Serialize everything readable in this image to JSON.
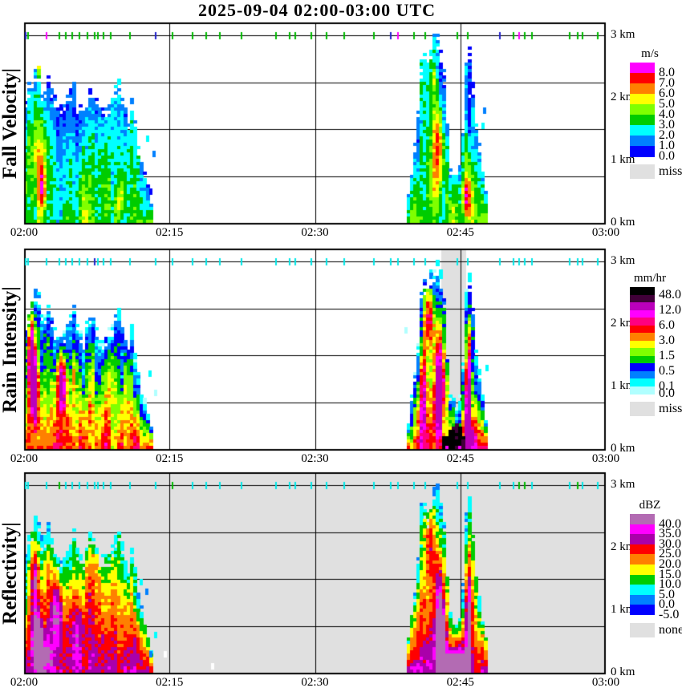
{
  "chart_data": {
    "type": "heatmap",
    "title": "2025-09-04  02:00-03:00 UTC",
    "x_tick_labels": [
      "02:00",
      "02:15",
      "02:30",
      "02:45",
      "03:00"
    ],
    "y_axis_labels": [
      "3 km",
      "2 km",
      "1 km",
      "0 km"
    ],
    "x_axis": {
      "start": "02:00",
      "end": "03:00",
      "tick_interval_min": 15,
      "duration_min": 60
    },
    "y_axis": {
      "min_km": 0,
      "max_km": 3,
      "inner_gridlines_km": [
        0.75,
        1.5,
        2.25
      ]
    },
    "events": [
      {
        "id": "A",
        "t_start_min": 0,
        "t_end_min": 13.4,
        "top_profile": [
          [
            -0.2,
            1.7
          ],
          [
            0.6,
            2.25
          ],
          [
            1.4,
            2.6
          ],
          [
            1.9,
            2.1
          ],
          [
            2.5,
            2.4
          ],
          [
            3.1,
            1.95
          ],
          [
            3.7,
            1.8
          ],
          [
            4.4,
            2.0
          ],
          [
            5.0,
            2.35
          ],
          [
            5.5,
            1.95
          ],
          [
            6.2,
            1.85
          ],
          [
            6.9,
            2.3
          ],
          [
            7.5,
            1.95
          ],
          [
            8.3,
            1.8
          ],
          [
            9.2,
            2.05
          ],
          [
            9.7,
            2.3
          ],
          [
            10.3,
            1.9
          ],
          [
            10.8,
            1.6
          ],
          [
            11.2,
            2.15
          ],
          [
            11.6,
            1.35
          ],
          [
            12.2,
            0.95
          ],
          [
            12.8,
            0.55
          ],
          [
            13.4,
            0.2
          ]
        ]
      },
      {
        "id": "B",
        "t_start_min": 39.3,
        "t_end_min": 47.9,
        "top_profile": [
          [
            39.3,
            0.2
          ],
          [
            39.9,
            0.8
          ],
          [
            40.5,
            1.5
          ],
          [
            41.0,
            2.85
          ],
          [
            41.5,
            2.6
          ],
          [
            42.1,
            2.9
          ],
          [
            42.7,
            3.0
          ],
          [
            43.2,
            2.6
          ],
          [
            43.6,
            1.6
          ],
          [
            43.9,
            0.95
          ],
          [
            44.4,
            0.75
          ],
          [
            44.9,
            0.85
          ],
          [
            45.3,
            1.5
          ],
          [
            45.6,
            2.6
          ],
          [
            45.9,
            2.85
          ],
          [
            46.2,
            2.35
          ],
          [
            46.6,
            1.65
          ],
          [
            47.0,
            1.15
          ],
          [
            47.4,
            0.7
          ],
          [
            47.9,
            0.3
          ]
        ]
      }
    ],
    "tick_color_map": {
      "g": "#00bb00",
      "b": "#2222cc",
      "m": "#ff00ff",
      "c": "#00e8e8"
    },
    "panels": [
      {
        "id": "fall-velocity",
        "label": "Fall Velocity|",
        "background": "#ffffff",
        "scale": {
          "unit": "m/s",
          "colors_high_to_low": [
            "#ff00ff",
            "#ff0000",
            "#ff8000",
            "#ffff00",
            "#80ff00",
            "#00cc00",
            "#00ffff",
            "#0080ff",
            "#0000ff"
          ],
          "labels": [
            [
              "8.0",
              1
            ],
            [
              "7.0",
              2
            ],
            [
              "6.0",
              3
            ],
            [
              "5.0",
              4
            ],
            [
              "4.0",
              5
            ],
            [
              "3.0",
              6
            ],
            [
              "2.0",
              7
            ],
            [
              "1.0",
              8
            ],
            [
              "0.0",
              9
            ]
          ],
          "miss": {
            "label": "miss",
            "color": "#e0e0e0"
          }
        },
        "render": {
          "v0": 0.14,
          "v1": 0.3,
          "vn": 0.42,
          "seed": 11,
          "cap": 8
        },
        "cores": [
          [
            1.6,
            1.0,
            0.45,
            0.65,
            0.5
          ],
          [
            1.5,
            2.5,
            0.2,
            0.18,
            0.42
          ],
          [
            1.9,
            0.5,
            0.4,
            0.35,
            0.45
          ],
          [
            9.8,
            0.35,
            0.5,
            0.3,
            0.28
          ],
          [
            11.2,
            2.15,
            0.12,
            0.15,
            0.48
          ],
          [
            42.6,
            1.2,
            0.5,
            0.7,
            0.5
          ],
          [
            42.4,
            2.3,
            0.18,
            0.18,
            0.45
          ],
          [
            45.6,
            0.4,
            0.4,
            0.35,
            0.55
          ],
          [
            45.45,
            2.45,
            0.1,
            0.3,
            0.62
          ],
          [
            45.9,
            1.7,
            0.25,
            0.5,
            -0.28
          ]
        ],
        "specks": [
          [
            12.6,
            1.35,
            "#00ffff"
          ],
          [
            13.2,
            1.1,
            "#0080ff"
          ],
          [
            12.9,
            0.5,
            "#0000ff"
          ],
          [
            47.3,
            1.8,
            "#0080ff"
          ],
          [
            47.2,
            1.55,
            "#00ffff"
          ]
        ],
        "ticks_3km": [
          [
            0.15,
            "b"
          ],
          [
            0.45,
            "g"
          ],
          [
            2.3,
            "m"
          ],
          [
            3.6,
            "g"
          ],
          [
            4.3,
            "g"
          ],
          [
            5.0,
            "g"
          ],
          [
            5.7,
            "g"
          ],
          [
            6.5,
            "g"
          ],
          [
            7.3,
            "g"
          ],
          [
            7.6,
            "g"
          ],
          [
            8.2,
            "g"
          ],
          [
            8.9,
            "g"
          ],
          [
            10.9,
            "g"
          ],
          [
            13.6,
            "b"
          ],
          [
            15.3,
            "g"
          ],
          [
            17.4,
            "g"
          ],
          [
            18.8,
            "g"
          ],
          [
            20.2,
            "g"
          ],
          [
            22.4,
            "g"
          ],
          [
            26.0,
            "g"
          ],
          [
            27.4,
            "g"
          ],
          [
            28.0,
            "g"
          ],
          [
            29.6,
            "g"
          ],
          [
            31.2,
            "g"
          ],
          [
            33.0,
            "g"
          ],
          [
            36.1,
            "g"
          ],
          [
            37.8,
            "b"
          ],
          [
            38.6,
            "m"
          ],
          [
            40.2,
            "g"
          ],
          [
            41.4,
            "g"
          ],
          [
            44.7,
            "g"
          ],
          [
            45.8,
            "g"
          ],
          [
            49.1,
            "b"
          ],
          [
            50.5,
            "g"
          ],
          [
            51.1,
            "m"
          ],
          [
            51.6,
            "g"
          ],
          [
            52.4,
            "g"
          ],
          [
            56.3,
            "g"
          ],
          [
            57.1,
            "g"
          ],
          [
            57.6,
            "g"
          ],
          [
            59.2,
            "g"
          ]
        ]
      },
      {
        "id": "rain-intensity",
        "label": "Rain Intensity|",
        "background": "#ffffff",
        "miss_band": [
          43.0,
          45.6
        ],
        "black_blob": [
          43.25,
          45.45
        ],
        "scale": {
          "unit": "mm/hr",
          "colors_high_to_low": [
            "#000000",
            "#400038",
            "#bb00bb",
            "#ff00ff",
            "#ff0080",
            "#ff0000",
            "#ff8000",
            "#ffff00",
            "#80ff00",
            "#00cc00",
            "#0000ff",
            "#0080ff",
            "#00ffff",
            "#b0ffff"
          ],
          "labels": [
            [
              "48.0",
              1
            ],
            [
              "12.0",
              3
            ],
            [
              "6.0",
              5
            ],
            [
              "3.0",
              7
            ],
            [
              "1.5",
              9
            ],
            [
              "0.5",
              11
            ],
            [
              "0.1",
              13
            ],
            [
              "0.0",
              14
            ]
          ],
          "miss": {
            "label": "miss",
            "color": "#e0e0e0"
          }
        },
        "render": {
          "v0": 0.08,
          "v1": 0.5,
          "vn": 0.38,
          "seed": 22,
          "cap": 11
        },
        "cores": [
          [
            0.8,
            1.5,
            0.5,
            0.55,
            0.5
          ],
          [
            1.1,
            0.9,
            0.35,
            0.45,
            0.62
          ],
          [
            3.9,
            1.05,
            0.5,
            0.5,
            0.58
          ],
          [
            41.8,
            2.1,
            0.6,
            0.5,
            0.42
          ],
          [
            41.2,
            1.0,
            0.4,
            0.8,
            0.45
          ],
          [
            42.8,
            0.9,
            0.45,
            0.8,
            0.6
          ],
          [
            45.8,
            0.9,
            0.28,
            0.9,
            0.6
          ],
          [
            46.0,
            0.2,
            0.5,
            0.25,
            0.45
          ]
        ],
        "specks": [
          [
            12.8,
            1.2,
            "#00ffff"
          ],
          [
            13.4,
            0.9,
            "#b0ffff"
          ],
          [
            39.2,
            1.9,
            "#b0ffff"
          ],
          [
            47.6,
            1.3,
            "#00ffff"
          ]
        ],
        "ticks_3km": [
          [
            0.15,
            "c"
          ],
          [
            0.45,
            "c"
          ],
          [
            2.3,
            "c"
          ],
          [
            3.6,
            "c"
          ],
          [
            4.3,
            "c"
          ],
          [
            5.0,
            "c"
          ],
          [
            5.7,
            "c"
          ],
          [
            6.5,
            "c"
          ],
          [
            7.3,
            "b"
          ],
          [
            7.6,
            "c"
          ],
          [
            8.2,
            "c"
          ],
          [
            8.9,
            "c"
          ],
          [
            10.9,
            "c"
          ],
          [
            13.6,
            "c"
          ],
          [
            15.3,
            "c"
          ],
          [
            17.4,
            "c"
          ],
          [
            18.8,
            "c"
          ],
          [
            20.2,
            "c"
          ],
          [
            22.4,
            "c"
          ],
          [
            26.0,
            "c"
          ],
          [
            27.4,
            "c"
          ],
          [
            28.0,
            "c"
          ],
          [
            29.6,
            "c"
          ],
          [
            31.2,
            "c"
          ],
          [
            33.0,
            "c"
          ],
          [
            36.1,
            "c"
          ],
          [
            37.8,
            "c"
          ],
          [
            38.6,
            "c"
          ],
          [
            40.2,
            "c"
          ],
          [
            41.4,
            "c"
          ],
          [
            44.7,
            "c"
          ],
          [
            45.8,
            "c"
          ],
          [
            49.1,
            "c"
          ],
          [
            50.5,
            "c"
          ],
          [
            51.1,
            "c"
          ],
          [
            51.6,
            "c"
          ],
          [
            52.4,
            "c"
          ],
          [
            56.3,
            "c"
          ],
          [
            57.1,
            "c"
          ],
          [
            57.6,
            "c"
          ],
          [
            59.2,
            "c"
          ]
        ]
      },
      {
        "id": "reflectivity",
        "label": "Reflectivity|",
        "background": "#e0e0e0",
        "scale": {
          "unit": "dBZ",
          "colors_high_to_low": [
            "#b36bb3",
            "#ff00ff",
            "#aa00aa",
            "#ff0000",
            "#ff8000",
            "#ffff00",
            "#00cc00",
            "#00ffff",
            "#0080ff",
            "#0000ff"
          ],
          "labels": [
            [
              "40.0",
              1
            ],
            [
              "35.0",
              2
            ],
            [
              "30.0",
              3
            ],
            [
              "25.0",
              4
            ],
            [
              "20.0",
              5
            ],
            [
              "15.0",
              6
            ],
            [
              "10.0",
              7
            ],
            [
              "5.0",
              8
            ],
            [
              "0.0",
              9
            ],
            [
              "-5.0",
              10
            ]
          ],
          "miss": {
            "label": "none",
            "color": "#e0e0e0"
          }
        },
        "render": {
          "v0": 0.2,
          "v1": 0.52,
          "vn": 0.3,
          "seed": 33,
          "cap": 9
        },
        "cores": [
          [
            1.3,
            0.55,
            0.5,
            0.45,
            0.55
          ],
          [
            1.1,
            1.5,
            0.4,
            0.5,
            0.42
          ],
          [
            3.4,
            1.0,
            0.6,
            0.5,
            0.45
          ],
          [
            2.0,
            0.3,
            0.8,
            0.3,
            0.38
          ],
          [
            41.8,
            2.2,
            0.5,
            0.6,
            0.35
          ],
          [
            42.9,
            0.9,
            0.5,
            0.9,
            0.48
          ],
          [
            43.0,
            0.5,
            0.3,
            0.6,
            0.55
          ],
          [
            44.4,
            0.12,
            1.2,
            0.25,
            0.6
          ],
          [
            45.8,
            0.8,
            0.25,
            0.9,
            0.45
          ],
          [
            5.5,
            0.7,
            1.2,
            0.5,
            0.22
          ],
          [
            7.0,
            1.5,
            1.0,
            0.6,
            0.18
          ]
        ],
        "specks": [
          [
            11.9,
            1.45,
            "#00ffff"
          ],
          [
            12.5,
            1.3,
            "#0080ff"
          ],
          [
            13.4,
            0.6,
            "#00ffff"
          ],
          [
            12.9,
            0.3,
            "#0080ff"
          ],
          [
            19.3,
            0.1,
            "#ffffff"
          ],
          [
            14.4,
            0.3,
            "#ffffff"
          ]
        ],
        "ticks_3km": [
          [
            0.15,
            "c"
          ],
          [
            0.45,
            "c"
          ],
          [
            2.3,
            "c"
          ],
          [
            3.6,
            "g"
          ],
          [
            4.3,
            "c"
          ],
          [
            5.0,
            "c"
          ],
          [
            5.7,
            "c"
          ],
          [
            6.5,
            "c"
          ],
          [
            7.3,
            "c"
          ],
          [
            7.6,
            "c"
          ],
          [
            8.2,
            "c"
          ],
          [
            8.9,
            "c"
          ],
          [
            10.9,
            "c"
          ],
          [
            13.6,
            "c"
          ],
          [
            15.3,
            "g"
          ],
          [
            17.4,
            "c"
          ],
          [
            18.8,
            "c"
          ],
          [
            20.2,
            "c"
          ],
          [
            22.4,
            "c"
          ],
          [
            26.0,
            "c"
          ],
          [
            27.4,
            "c"
          ],
          [
            28.0,
            "c"
          ],
          [
            29.6,
            "c"
          ],
          [
            31.2,
            "c"
          ],
          [
            33.0,
            "c"
          ],
          [
            36.1,
            "c"
          ],
          [
            37.8,
            "c"
          ],
          [
            38.6,
            "c"
          ],
          [
            40.2,
            "c"
          ],
          [
            41.4,
            "c"
          ],
          [
            44.7,
            "c"
          ],
          [
            45.8,
            "c"
          ],
          [
            49.1,
            "c"
          ],
          [
            50.5,
            "c"
          ],
          [
            51.1,
            "g"
          ],
          [
            51.6,
            "g"
          ],
          [
            52.4,
            "c"
          ],
          [
            56.3,
            "c"
          ],
          [
            57.1,
            "g"
          ],
          [
            57.6,
            "c"
          ],
          [
            59.2,
            "c"
          ]
        ]
      }
    ]
  }
}
